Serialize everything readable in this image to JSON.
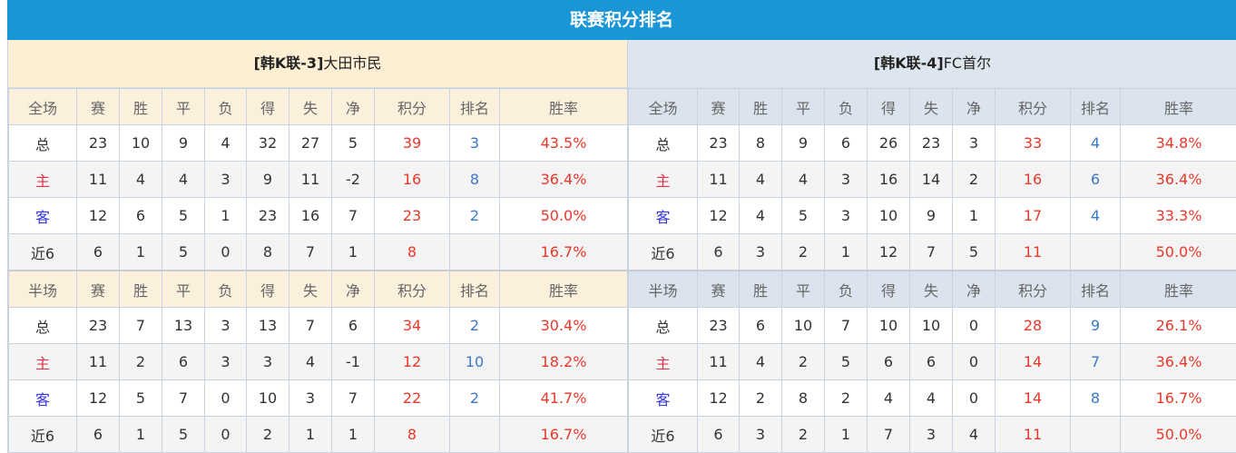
{
  "title": "联赛积分排名",
  "headers": {
    "full": "全场",
    "half": "半场",
    "cols": [
      "赛",
      "胜",
      "平",
      "负",
      "得",
      "失",
      "净",
      "积分",
      "排名",
      "胜率"
    ]
  },
  "colors": {
    "header_bar": "#1a96d6",
    "points": "#e8392a",
    "rank": "#3a78c8",
    "home": "#e0324b",
    "away": "#3535e0"
  },
  "teams": [
    {
      "tag": "[韩K联-3]",
      "name": "大田市民",
      "full": [
        [
          "总",
          "23",
          "10",
          "9",
          "4",
          "32",
          "27",
          "5",
          "39",
          "3",
          "43.5%"
        ],
        [
          "主",
          "11",
          "4",
          "4",
          "3",
          "9",
          "11",
          "-2",
          "16",
          "8",
          "36.4%"
        ],
        [
          "客",
          "12",
          "6",
          "5",
          "1",
          "23",
          "16",
          "7",
          "23",
          "2",
          "50.0%"
        ],
        [
          "近6",
          "6",
          "1",
          "5",
          "0",
          "8",
          "7",
          "1",
          "8",
          "",
          "16.7%"
        ]
      ],
      "half": [
        [
          "总",
          "23",
          "7",
          "13",
          "3",
          "13",
          "7",
          "6",
          "34",
          "2",
          "30.4%"
        ],
        [
          "主",
          "11",
          "2",
          "6",
          "3",
          "3",
          "4",
          "-1",
          "12",
          "10",
          "18.2%"
        ],
        [
          "客",
          "12",
          "5",
          "7",
          "0",
          "10",
          "3",
          "7",
          "22",
          "2",
          "41.7%"
        ],
        [
          "近6",
          "6",
          "1",
          "5",
          "0",
          "2",
          "1",
          "1",
          "8",
          "",
          "16.7%"
        ]
      ]
    },
    {
      "tag": "[韩K联-4]",
      "name": "FC首尔",
      "full": [
        [
          "总",
          "23",
          "8",
          "9",
          "6",
          "26",
          "23",
          "3",
          "33",
          "4",
          "34.8%"
        ],
        [
          "主",
          "11",
          "4",
          "4",
          "3",
          "16",
          "14",
          "2",
          "16",
          "6",
          "36.4%"
        ],
        [
          "客",
          "12",
          "4",
          "5",
          "3",
          "10",
          "9",
          "1",
          "17",
          "4",
          "33.3%"
        ],
        [
          "近6",
          "6",
          "3",
          "2",
          "1",
          "12",
          "7",
          "5",
          "11",
          "",
          "50.0%"
        ]
      ],
      "half": [
        [
          "总",
          "23",
          "6",
          "10",
          "7",
          "10",
          "10",
          "0",
          "28",
          "9",
          "26.1%"
        ],
        [
          "主",
          "11",
          "4",
          "2",
          "5",
          "6",
          "6",
          "0",
          "14",
          "7",
          "36.4%"
        ],
        [
          "客",
          "12",
          "2",
          "8",
          "2",
          "4",
          "4",
          "0",
          "14",
          "8",
          "16.7%"
        ],
        [
          "近6",
          "6",
          "3",
          "2",
          "1",
          "7",
          "3",
          "4",
          "11",
          "",
          "50.0%"
        ]
      ]
    }
  ]
}
